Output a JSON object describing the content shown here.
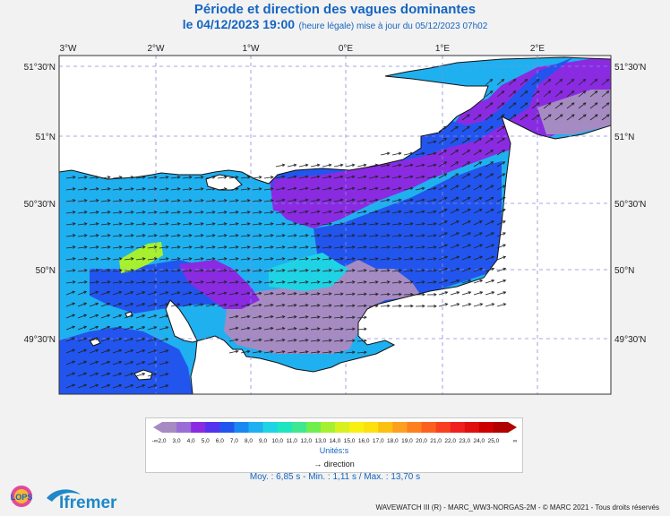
{
  "header": {
    "title": "Période et direction des vagues dominantes",
    "date_main": "le 04/12/2023 19:00",
    "date_note": "(heure légale) mise à jour du 05/12/2023 07h02"
  },
  "map": {
    "lon_labels": [
      "3°W",
      "2°W",
      "1°W",
      "0°E",
      "1°E",
      "2°E"
    ],
    "lat_labels": [
      "51°30'N",
      "51°N",
      "50°30'N",
      "50°N",
      "49°30'N"
    ],
    "sea_fill": "#1fb0f0",
    "land_fill": "#ffffff"
  },
  "legend": {
    "ticks": [
      "-∞",
      "2,0",
      "3,0",
      "4,0",
      "5,0",
      "6,0",
      "7,0",
      "8,0",
      "9,0",
      "10,0",
      "11,0",
      "12,0",
      "13,0",
      "14,0",
      "15,0",
      "16,0",
      "17,0",
      "18,0",
      "19,0",
      "20,0",
      "21,0",
      "22,0",
      "23,0",
      "24,0",
      "25,0",
      "∞"
    ],
    "colors": [
      "#a68bc2",
      "#9a6dd6",
      "#8a2be2",
      "#5533ee",
      "#2255ee",
      "#1a88f0",
      "#1fb0f0",
      "#1ed4e4",
      "#1ee4c0",
      "#3ee890",
      "#70ee50",
      "#a6f030",
      "#d8f020",
      "#f8f010",
      "#fce010",
      "#fcc010",
      "#fca020",
      "#fc8020",
      "#fc6020",
      "#f84020",
      "#f02020",
      "#e01010",
      "#cc0000",
      "#b00000"
    ],
    "units": "Unités:s",
    "direction_label": "direction"
  },
  "stats": "Moy. : 6,85 s   -   Min. : 1,11 s / Max. : 13,70 s",
  "footer": "WAVEWATCH III (R) - MARC_WW3-NORGAS-2M - © MARC 2021 - Tous droits réservés",
  "logos": {
    "lops": "LOPS",
    "ifremer": "Ifremer"
  }
}
